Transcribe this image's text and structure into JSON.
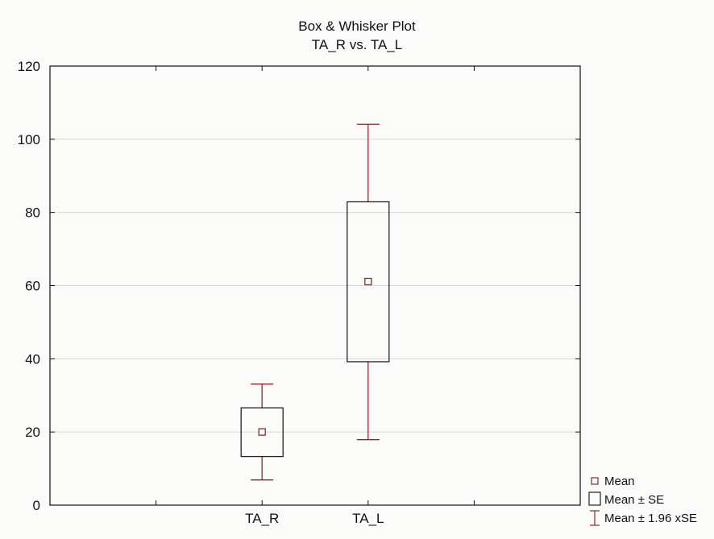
{
  "chart_data": {
    "type": "box",
    "title": "Box & Whisker Plot",
    "subtitle": "TA_R vs. TA_L",
    "xlabel": "",
    "ylabel": "",
    "ylim": [
      0,
      120
    ],
    "yticks": [
      0,
      20,
      40,
      60,
      80,
      100,
      120
    ],
    "grid": true,
    "legend_position": "bottom-right",
    "categories": [
      "TA_R",
      "TA_L"
    ],
    "boxes": [
      {
        "category": "TA_R",
        "mean": 20,
        "box_low": 13.3,
        "box_high": 26.6,
        "whisker_low": 6.9,
        "whisker_high": 33.1
      },
      {
        "category": "TA_L",
        "mean": 61.1,
        "box_low": 39.2,
        "box_high": 82.9,
        "whisker_low": 17.9,
        "whisker_high": 104.1
      }
    ],
    "legend": [
      {
        "symbol": "mean-marker",
        "label": "Mean"
      },
      {
        "symbol": "box",
        "label": "Mean ± SE"
      },
      {
        "symbol": "whisker",
        "label": "Mean ±  1.96 xSE"
      }
    ],
    "colors": {
      "whisker": "#8b2a2a",
      "box_stroke": "#222222",
      "mean_marker": "#8b2a2a",
      "grid": "#d8d8d8",
      "axis": "#111111",
      "background": "#fbfbf9"
    }
  }
}
